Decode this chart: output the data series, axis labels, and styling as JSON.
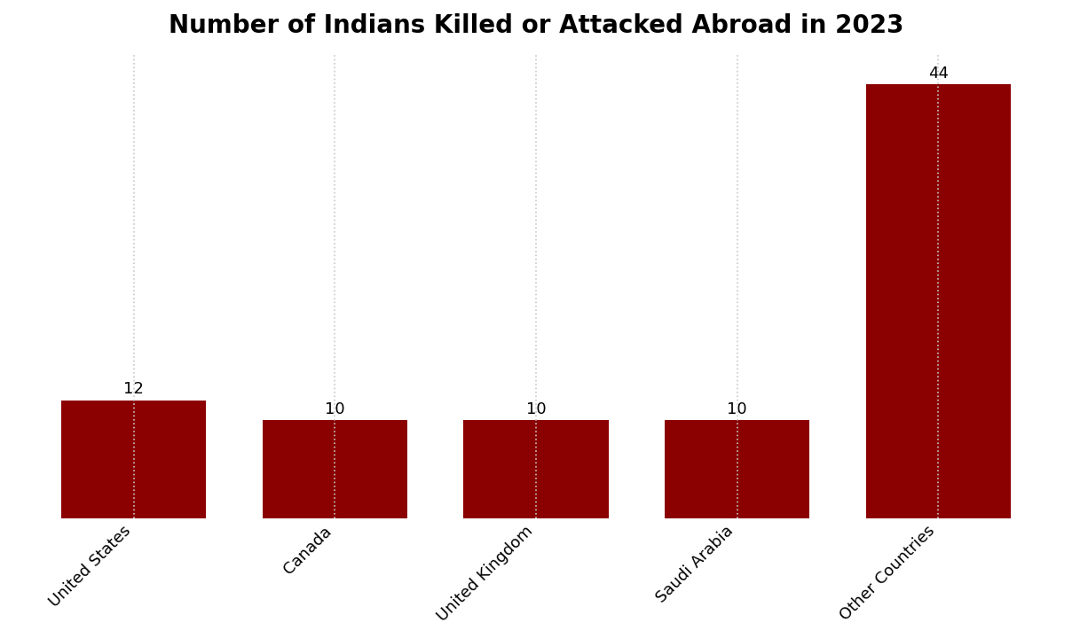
{
  "title": "Number of Indians Killed or Attacked Abroad in 2023",
  "categories": [
    "United States",
    "Canada",
    "United Kingdom",
    "Saudi Arabia",
    "Other Countries"
  ],
  "values": [
    12,
    10,
    10,
    10,
    44
  ],
  "bar_color": "#8B0000",
  "background_color": "#ffffff",
  "title_fontsize": 20,
  "label_fontsize": 13,
  "value_fontsize": 13,
  "ylim": [
    0,
    47
  ],
  "bar_width": 0.72,
  "grid_color": "#c8c8c8",
  "grid_linestyle": ":",
  "grid_linewidth": 1.2
}
